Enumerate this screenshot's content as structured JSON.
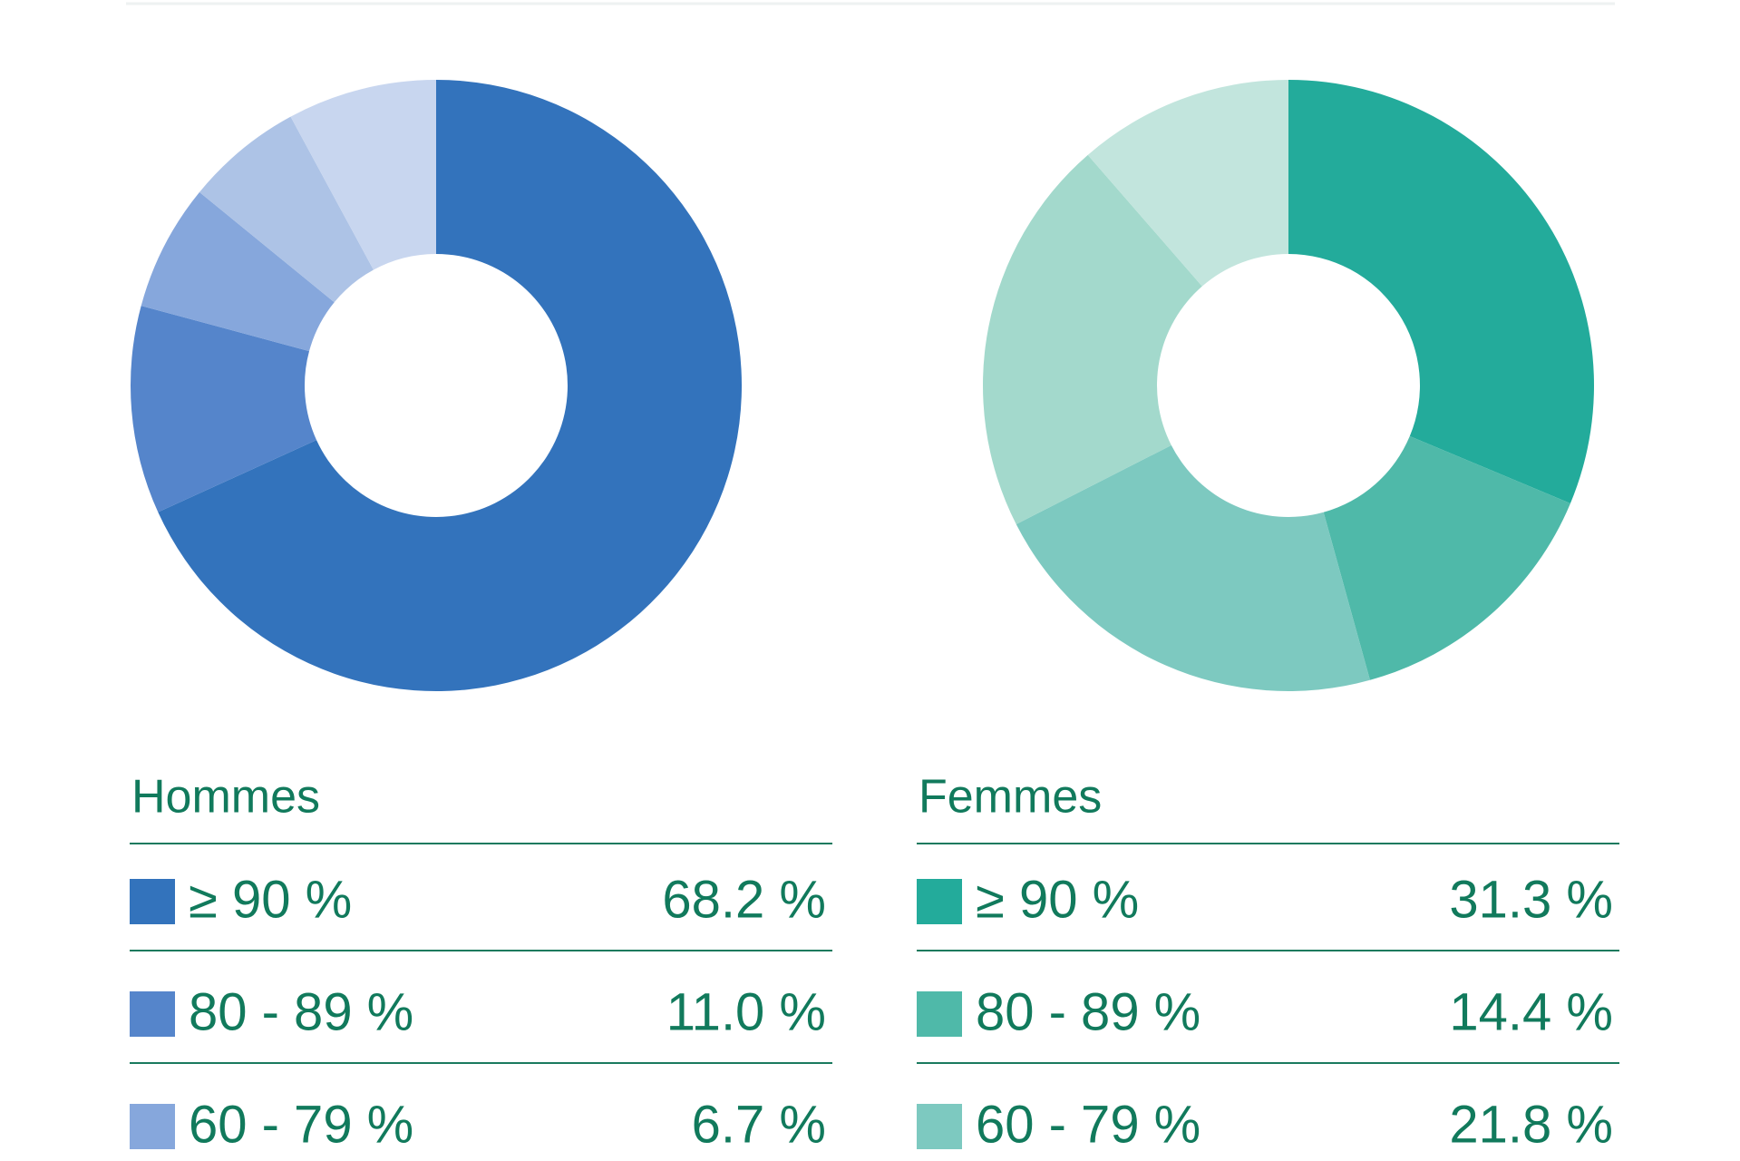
{
  "chart_data": [
    {
      "type": "donut",
      "title": "Hommes",
      "categories": [
        "≥ 90 %",
        "80 - 89 %",
        "60 - 79 %",
        null,
        null
      ],
      "values": [
        68.2,
        11.0,
        6.7,
        6.2,
        7.9
      ],
      "value_labels": [
        "68.2 %",
        "11.0 %",
        "6.7 %",
        null,
        null
      ],
      "colors": [
        "#3373bc",
        "#5585cb",
        "#86a7dc",
        "#adc3e6",
        "#c8d6ef"
      ]
    },
    {
      "type": "donut",
      "title": "Femmes",
      "categories": [
        "≥ 90 %",
        "80 - 89 %",
        "60 - 79 %",
        null,
        null
      ],
      "values": [
        31.3,
        14.4,
        21.8,
        21.1,
        11.4
      ],
      "value_labels": [
        "31.3 %",
        "14.4 %",
        "21.8 %",
        null,
        null
      ],
      "colors": [
        "#23ab9b",
        "#4fb9a9",
        "#7dc9c0",
        "#a3d9cc",
        "#c2e5dd"
      ]
    }
  ]
}
